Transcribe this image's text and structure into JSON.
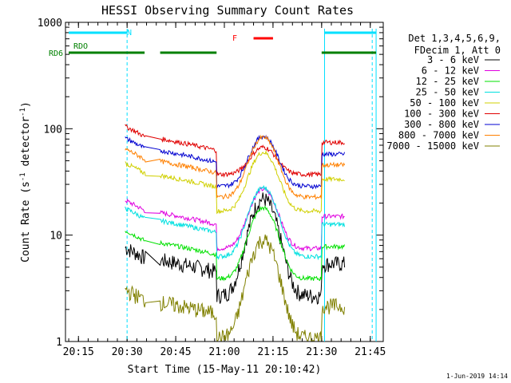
{
  "chart_data": {
    "type": "line",
    "title": "HESSI Observing Summary Count Rates",
    "xlabel": "Start Time (15-May-11 20:10:42)",
    "ylabel": "Count Rate (s",
    "ylabel_sup1": "-1",
    "ylabel_mid": " detector",
    "ylabel_sup2": "-1",
    "ylabel_end": ")",
    "y_scale": "log",
    "ylim": [
      1,
      1000
    ],
    "xlim_minutes": [
      20.1833,
      21.8167
    ],
    "x_tick_labels": [
      "20:15",
      "20:30",
      "20:45",
      "21:00",
      "21:15",
      "21:30",
      "21:45"
    ],
    "x_tick_minutes": [
      20.25,
      20.5,
      20.75,
      21.0,
      21.25,
      21.5,
      21.75
    ],
    "y_tick_labels": [
      "1",
      "10",
      "100",
      "1000"
    ],
    "y_tick_values": [
      1,
      10,
      100,
      1000
    ],
    "legend": {
      "position": "right",
      "header": [
        "Det 1,3,4,5,6,9,",
        "FDecim 1, Att 0"
      ]
    },
    "series": [
      {
        "name": "3 - 6 keV",
        "color": "#000000",
        "night": 4.5,
        "peak": 22
      },
      {
        "name": "6 - 12 keV",
        "color": "#e000e0",
        "night": 12.5,
        "peak": 27
      },
      {
        "name": "12 - 25 keV",
        "color": "#00e000",
        "night": 6.5,
        "peak": 18
      },
      {
        "name": "25 - 50 keV",
        "color": "#00e0e0",
        "night": 10.5,
        "peak": 28
      },
      {
        "name": "50 - 100 keV",
        "color": "#d0d000",
        "night": 28,
        "peak": 60
      },
      {
        "name": "100 - 300 keV",
        "color": "#e00000",
        "night": 62,
        "peak": 67
      },
      {
        "name": "300 - 800 keV",
        "color": "#0000d0",
        "night": 48,
        "peak": 85
      },
      {
        "name": "800 - 7000 keV",
        "color": "#ff8000",
        "night": 38,
        "peak": 83
      },
      {
        "name": "7000 - 15000 keV",
        "color": "#808000",
        "night": 1.8,
        "peak": 9
      }
    ],
    "flags": [
      {
        "label": "N",
        "color": "#00e0ff",
        "segments": [
          [
            20.2,
            20.5
          ],
          [
            21.515,
            21.78
          ]
        ]
      },
      {
        "label": "F",
        "color": "#ff0000",
        "segments": [
          [
            21.15,
            21.25
          ]
        ]
      },
      {
        "label": "RDO",
        "color": "#008000",
        "segments": []
      },
      {
        "label": "RD6",
        "color": "#008000",
        "segments": [
          [
            20.2,
            20.59
          ],
          [
            20.67,
            20.96
          ],
          [
            21.5,
            21.78
          ]
        ]
      }
    ],
    "night_intervals": [
      [
        20.5,
        21.515
      ],
      [
        21.76,
        21.78
      ]
    ]
  },
  "footer": {
    "date_stamp": "1-Jun-2019 14:14"
  }
}
